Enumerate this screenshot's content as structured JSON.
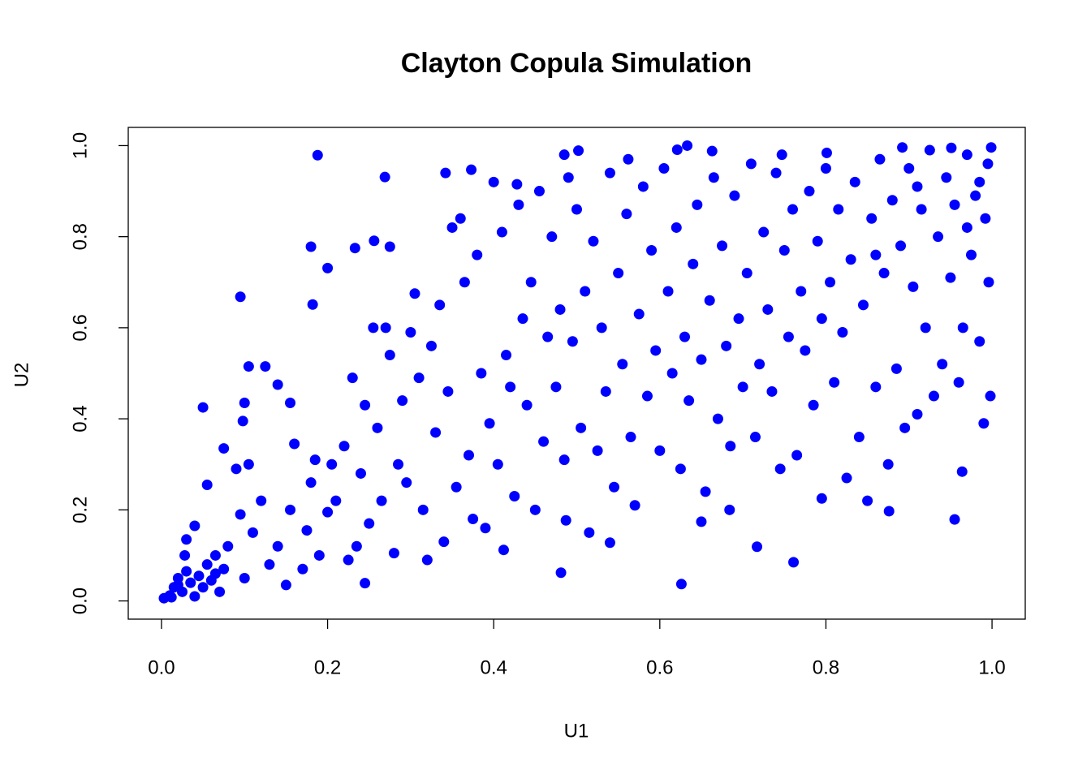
{
  "chart_data": {
    "type": "scatter",
    "title": "Clayton Copula Simulation",
    "x_label": "U1",
    "y_label": "U2",
    "color": "#0000ff",
    "xlim": [
      -0.04,
      1.04
    ],
    "ylim": [
      -0.04,
      1.04
    ],
    "xticks": [
      {
        "value": 0,
        "label": "0.0"
      },
      0.2,
      0.4,
      0.6,
      0.8,
      {
        "value": 1,
        "label": "1.0"
      }
    ],
    "yticks": [
      {
        "value": 0,
        "label": "0.0"
      },
      0.2,
      0.4,
      0.6,
      0.8,
      {
        "value": 1,
        "label": "1.0"
      }
    ],
    "x": [
      0.003,
      0.01,
      0.015,
      0.02,
      0.025,
      0.03,
      0.035,
      0.04,
      0.045,
      0.05,
      0.055,
      0.06,
      0.065,
      0.07,
      0.075,
      0.08,
      0.028,
      0.04,
      0.03,
      0.055,
      0.05,
      0.075,
      0.09,
      0.095,
      0.1,
      0.105,
      0.11,
      0.12,
      0.098,
      0.1,
      0.105,
      0.125,
      0.14,
      0.13,
      0.14,
      0.15,
      0.155,
      0.16,
      0.155,
      0.17,
      0.175,
      0.18,
      0.185,
      0.19,
      0.2,
      0.205,
      0.21,
      0.22,
      0.225,
      0.23,
      0.235,
      0.24,
      0.245,
      0.25,
      0.255,
      0.26,
      0.265,
      0.27,
      0.275,
      0.28,
      0.285,
      0.29,
      0.295,
      0.3,
      0.305,
      0.31,
      0.315,
      0.32,
      0.325,
      0.33,
      0.335,
      0.34,
      0.345,
      0.35,
      0.355,
      0.36,
      0.365,
      0.37,
      0.375,
      0.38,
      0.385,
      0.39,
      0.395,
      0.4,
      0.405,
      0.41,
      0.415,
      0.42,
      0.425,
      0.43,
      0.435,
      0.44,
      0.445,
      0.45,
      0.455,
      0.46,
      0.465,
      0.47,
      0.475,
      0.48,
      0.485,
      0.49,
      0.495,
      0.5,
      0.505,
      0.51,
      0.515,
      0.52,
      0.525,
      0.53,
      0.535,
      0.54,
      0.545,
      0.55,
      0.555,
      0.56,
      0.565,
      0.57,
      0.575,
      0.58,
      0.585,
      0.59,
      0.595,
      0.6,
      0.605,
      0.61,
      0.615,
      0.62,
      0.625,
      0.63,
      0.635,
      0.64,
      0.645,
      0.65,
      0.655,
      0.66,
      0.665,
      0.67,
      0.675,
      0.68,
      0.685,
      0.69,
      0.695,
      0.7,
      0.705,
      0.71,
      0.715,
      0.72,
      0.725,
      0.73,
      0.735,
      0.74,
      0.745,
      0.75,
      0.755,
      0.76,
      0.765,
      0.77,
      0.775,
      0.78,
      0.785,
      0.79,
      0.795,
      0.8,
      0.805,
      0.81,
      0.815,
      0.82,
      0.825,
      0.83,
      0.835,
      0.84,
      0.845,
      0.85,
      0.855,
      0.86,
      0.865,
      0.87,
      0.875,
      0.88,
      0.885,
      0.89,
      0.895,
      0.9,
      0.905,
      0.91,
      0.915,
      0.92,
      0.925,
      0.93,
      0.935,
      0.94,
      0.945,
      0.95,
      0.955,
      0.96,
      0.965,
      0.97,
      0.975,
      0.98,
      0.985,
      0.99,
      0.995,
      0.998,
      0.992,
      0.996,
      0.985,
      0.97,
      0.91,
      0.86,
      0.188,
      0.095,
      0.269,
      0.182,
      0.2,
      0.18,
      0.233,
      0.256,
      0.275,
      0.245,
      0.481,
      0.626,
      0.761,
      0.717,
      0.955,
      0.964,
      0.876,
      0.795,
      0.684,
      0.65,
      0.412,
      0.487,
      0.54,
      0.502,
      0.485,
      0.621,
      0.633,
      0.663,
      0.892,
      0.951,
      0.999,
      0.801,
      0.747,
      0.562,
      0.342,
      0.373,
      0.428,
      0.02,
      0.012,
      0.065
    ],
    "values": [
      0.006,
      0.012,
      0.03,
      0.05,
      0.02,
      0.065,
      0.04,
      0.01,
      0.055,
      0.03,
      0.08,
      0.045,
      0.1,
      0.02,
      0.07,
      0.12,
      0.1,
      0.165,
      0.135,
      0.255,
      0.425,
      0.335,
      0.29,
      0.19,
      0.05,
      0.3,
      0.15,
      0.22,
      0.395,
      0.435,
      0.515,
      0.515,
      0.475,
      0.08,
      0.12,
      0.035,
      0.2,
      0.345,
      0.435,
      0.07,
      0.155,
      0.26,
      0.31,
      0.1,
      0.195,
      0.3,
      0.22,
      0.34,
      0.09,
      0.49,
      0.12,
      0.28,
      0.43,
      0.17,
      0.6,
      0.38,
      0.22,
      0.6,
      0.54,
      0.105,
      0.3,
      0.44,
      0.26,
      0.59,
      0.675,
      0.49,
      0.2,
      0.09,
      0.56,
      0.37,
      0.65,
      0.13,
      0.46,
      0.82,
      0.25,
      0.84,
      0.7,
      0.32,
      0.18,
      0.76,
      0.5,
      0.16,
      0.39,
      0.92,
      0.3,
      0.81,
      0.54,
      0.47,
      0.23,
      0.87,
      0.62,
      0.43,
      0.7,
      0.2,
      0.9,
      0.35,
      0.58,
      0.8,
      0.47,
      0.64,
      0.31,
      0.93,
      0.57,
      0.86,
      0.38,
      0.68,
      0.15,
      0.79,
      0.33,
      0.6,
      0.46,
      0.94,
      0.25,
      0.72,
      0.52,
      0.85,
      0.36,
      0.21,
      0.63,
      0.91,
      0.45,
      0.77,
      0.55,
      0.33,
      0.95,
      0.68,
      0.5,
      0.82,
      0.29,
      0.58,
      0.44,
      0.74,
      0.87,
      0.53,
      0.24,
      0.66,
      0.93,
      0.4,
      0.78,
      0.56,
      0.34,
      0.89,
      0.62,
      0.47,
      0.72,
      0.96,
      0.36,
      0.52,
      0.81,
      0.64,
      0.46,
      0.94,
      0.29,
      0.77,
      0.58,
      0.86,
      0.32,
      0.68,
      0.55,
      0.9,
      0.43,
      0.79,
      0.62,
      0.95,
      0.7,
      0.48,
      0.86,
      0.59,
      0.27,
      0.75,
      0.92,
      0.36,
      0.65,
      0.22,
      0.84,
      0.47,
      0.97,
      0.72,
      0.3,
      0.88,
      0.51,
      0.78,
      0.38,
      0.95,
      0.69,
      0.41,
      0.86,
      0.6,
      0.99,
      0.45,
      0.8,
      0.52,
      0.93,
      0.71,
      0.87,
      0.48,
      0.6,
      0.98,
      0.76,
      0.89,
      0.57,
      0.39,
      0.96,
      0.45,
      0.84,
      0.7,
      0.92,
      0.82,
      0.91,
      0.76,
      0.979,
      0.668,
      0.931,
      0.651,
      0.731,
      0.778,
      0.775,
      0.791,
      0.778,
      0.039,
      0.062,
      0.037,
      0.085,
      0.119,
      0.179,
      0.284,
      0.197,
      0.225,
      0.2,
      0.174,
      0.112,
      0.177,
      0.128,
      0.989,
      0.98,
      0.991,
      1.0,
      0.988,
      0.996,
      0.995,
      0.996,
      0.984,
      0.98,
      0.97,
      0.94,
      0.947,
      0.915,
      0.035,
      0.008,
      0.06
    ]
  }
}
